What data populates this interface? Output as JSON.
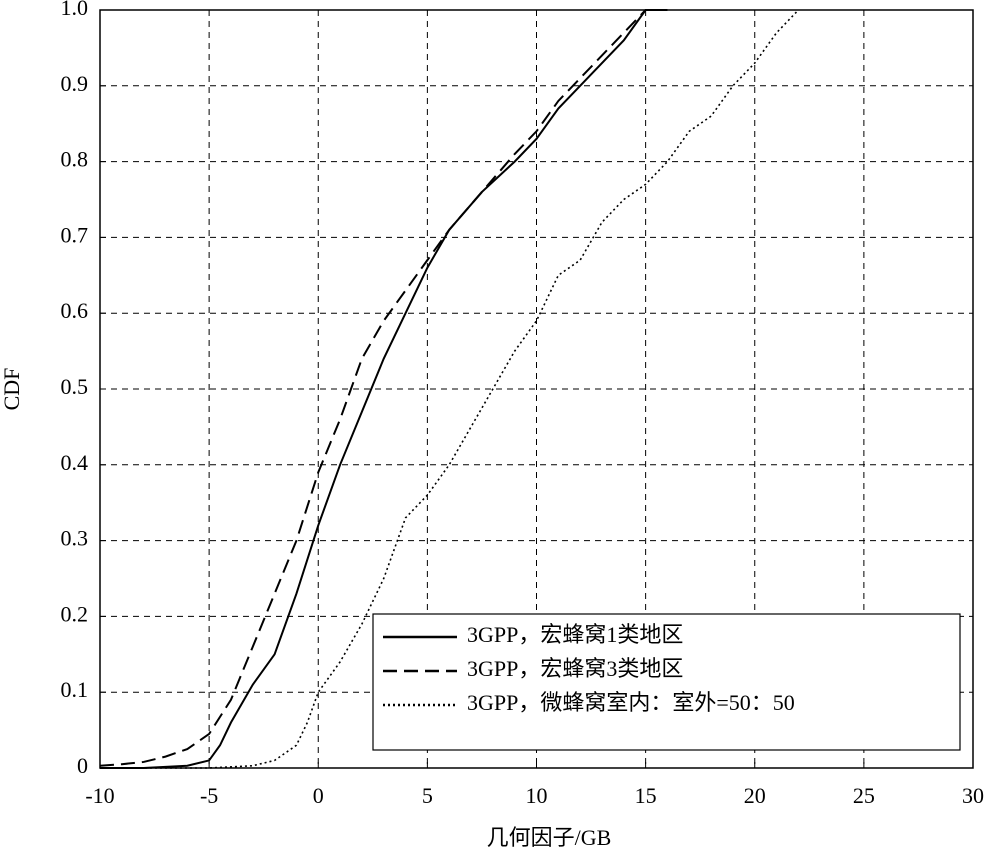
{
  "chart_data": {
    "type": "line",
    "x_label": "几何因子/GB",
    "y_label": "CDF",
    "xlim": [
      -10,
      30
    ],
    "xticks": [
      -10,
      -5,
      0,
      5,
      10,
      15,
      20,
      25,
      30
    ],
    "ylim": [
      0,
      1
    ],
    "yticks": [
      0,
      0.1,
      0.2,
      0.3,
      0.4,
      0.5,
      0.6,
      0.7,
      0.8,
      0.9,
      {
        "value": 1,
        "label": "1.0"
      }
    ],
    "grid": true,
    "legend": "lower right",
    "series": [
      {
        "name": "3GPP，宏蜂窝1类地区",
        "color": "#000000",
        "linestyle": "solid",
        "x": [
          -10,
          -8,
          -6,
          -5,
          -4.5,
          -4,
          -3,
          -2,
          -1,
          0,
          1,
          2,
          3,
          4,
          5,
          6,
          7.5,
          9,
          10,
          11,
          12,
          13,
          14,
          15,
          16
        ],
        "values": [
          0,
          0,
          0.003,
          0.01,
          0.03,
          0.06,
          0.11,
          0.15,
          0.23,
          0.32,
          0.4,
          0.47,
          0.54,
          0.6,
          0.66,
          0.71,
          0.76,
          0.8,
          0.83,
          0.87,
          0.9,
          0.93,
          0.96,
          1,
          1
        ]
      },
      {
        "name": "3GPP，宏蜂窝3类地区",
        "color": "#000000",
        "linestyle": "dashed",
        "x": [
          -10,
          -9,
          -8,
          -7,
          -6,
          -5,
          -4,
          -3,
          -2,
          -1,
          0,
          1,
          2,
          3,
          4,
          5,
          6,
          7.5,
          9,
          10,
          11,
          12,
          13,
          14,
          15
        ],
        "values": [
          0.003,
          0.005,
          0.008,
          0.015,
          0.025,
          0.045,
          0.09,
          0.16,
          0.23,
          0.3,
          0.39,
          0.46,
          0.54,
          0.59,
          0.63,
          0.67,
          0.71,
          0.76,
          0.81,
          0.84,
          0.88,
          0.91,
          0.94,
          0.97,
          1
        ]
      },
      {
        "name": "3GPP，微蜂窝室内：室外=50：50",
        "color": "#000000",
        "linestyle": "dotted",
        "x": [
          -10,
          -5,
          -3,
          -2,
          -1,
          -0.5,
          0,
          1,
          2,
          3,
          4,
          5,
          6,
          7,
          8,
          9,
          10,
          11,
          12,
          13,
          14,
          15,
          16,
          17,
          18,
          19,
          20,
          21,
          22
        ],
        "values": [
          0,
          0,
          0.003,
          0.01,
          0.03,
          0.06,
          0.1,
          0.14,
          0.19,
          0.25,
          0.33,
          0.36,
          0.4,
          0.45,
          0.5,
          0.55,
          0.59,
          0.65,
          0.67,
          0.72,
          0.75,
          0.77,
          0.8,
          0.84,
          0.86,
          0.9,
          0.93,
          0.97,
          1
        ]
      }
    ]
  }
}
